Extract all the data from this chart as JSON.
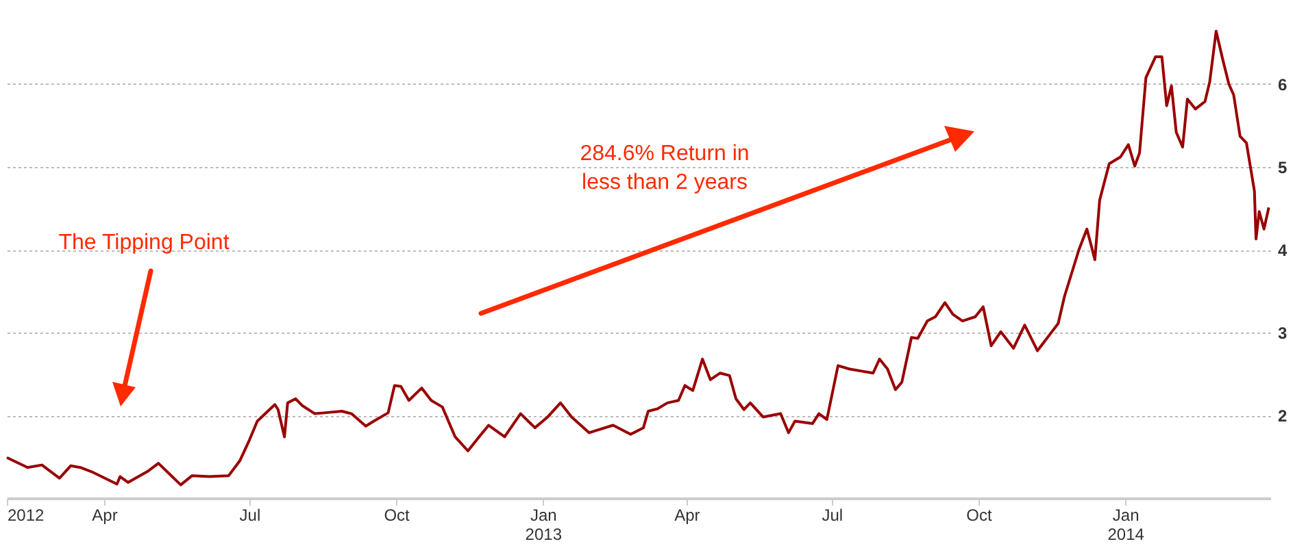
{
  "chart_data": {
    "type": "line",
    "x": [
      "2012-01-31",
      "2012-02-13",
      "2012-02-22",
      "2012-03-04",
      "2012-03-11",
      "2012-03-17",
      "2012-03-24",
      "2012-04-09",
      "2012-04-11",
      "2012-04-16",
      "2012-04-28",
      "2012-05-05",
      "2012-05-19",
      "2012-05-26",
      "2012-06-06",
      "2012-06-18",
      "2012-06-25",
      "2012-07-01",
      "2012-07-06",
      "2012-07-17",
      "2012-07-19",
      "2012-07-23",
      "2012-07-25",
      "2012-07-30",
      "2012-08-03",
      "2012-08-11",
      "2012-08-17",
      "2012-08-28",
      "2012-09-03",
      "2012-09-12",
      "2012-09-17",
      "2012-09-26",
      "2012-09-30",
      "2012-10-04",
      "2012-10-09",
      "2012-10-17",
      "2012-10-23",
      "2012-10-30",
      "2012-11-07",
      "2012-11-15",
      "2012-11-22",
      "2012-11-28",
      "2012-12-08",
      "2012-12-18",
      "2012-12-27",
      "2013-01-04",
      "2013-01-12",
      "2013-01-19",
      "2013-01-30",
      "2013-02-14",
      "2013-02-25",
      "2013-03-05",
      "2013-03-08",
      "2013-03-14",
      "2013-03-20",
      "2013-03-27",
      "2013-03-31",
      "2013-04-05",
      "2013-04-11",
      "2013-04-16",
      "2013-04-22",
      "2013-04-28",
      "2013-05-02",
      "2013-05-07",
      "2013-05-11",
      "2013-05-19",
      "2013-05-30",
      "2013-06-04",
      "2013-06-08",
      "2013-06-19",
      "2013-06-23",
      "2013-06-28",
      "2013-07-05",
      "2013-07-12",
      "2013-07-21",
      "2013-07-27",
      "2013-07-31",
      "2013-08-05",
      "2013-08-10",
      "2013-08-14",
      "2013-08-20",
      "2013-08-24",
      "2013-08-30",
      "2013-09-04",
      "2013-09-10",
      "2013-09-15",
      "2013-09-21",
      "2013-09-29",
      "2013-10-04",
      "2013-10-09",
      "2013-10-15",
      "2013-10-23",
      "2013-10-30",
      "2013-11-07",
      "2013-11-20",
      "2013-11-24",
      "2013-12-03",
      "2013-12-08",
      "2013-12-13",
      "2013-12-16",
      "2013-12-22",
      "2013-12-29",
      "2014-01-03",
      "2014-01-07",
      "2014-01-10",
      "2014-01-14",
      "2014-01-20",
      "2014-01-24",
      "2014-01-27",
      "2014-01-30",
      "2014-02-02",
      "2014-02-06",
      "2014-02-09",
      "2014-02-14",
      "2014-02-20",
      "2014-02-23",
      "2014-02-27",
      "2014-03-03",
      "2014-03-07",
      "2014-03-10",
      "2014-03-14",
      "2014-03-18",
      "2014-03-23",
      "2014-03-24",
      "2014-03-26",
      "2014-03-29",
      "2014-04-01"
    ],
    "series": [
      {
        "color": "#990000",
        "values": [
          1.49,
          1.37,
          1.4,
          1.24,
          1.39,
          1.37,
          1.32,
          1.17,
          1.26,
          1.19,
          1.32,
          1.42,
          1.16,
          1.27,
          1.26,
          1.27,
          1.45,
          1.7,
          1.93,
          2.13,
          2.07,
          1.74,
          2.15,
          2.2,
          2.12,
          2.02,
          2.03,
          2.05,
          2.02,
          1.87,
          1.93,
          2.03,
          2.36,
          2.35,
          2.18,
          2.33,
          2.18,
          2.1,
          1.74,
          1.57,
          1.74,
          1.88,
          1.74,
          2.02,
          1.85,
          1.98,
          2.15,
          1.98,
          1.79,
          1.88,
          1.77,
          1.85,
          2.05,
          2.08,
          2.15,
          2.18,
          2.36,
          2.3,
          2.68,
          2.43,
          2.51,
          2.48,
          2.2,
          2.07,
          2.15,
          1.98,
          2.02,
          1.79,
          1.93,
          1.9,
          2.02,
          1.95,
          2.6,
          2.56,
          2.53,
          2.51,
          2.68,
          2.56,
          2.31,
          2.4,
          2.94,
          2.93,
          3.14,
          3.19,
          3.36,
          3.22,
          3.14,
          3.19,
          3.31,
          2.84,
          3.01,
          2.81,
          3.09,
          2.78,
          3.11,
          3.44,
          4.0,
          4.25,
          3.88,
          4.6,
          5.04,
          5.12,
          5.27,
          5.01,
          5.17,
          6.08,
          6.33,
          6.33,
          5.74,
          5.98,
          5.42,
          5.24,
          5.82,
          5.7,
          5.79,
          6.03,
          6.64,
          6.31,
          6.0,
          5.87,
          5.37,
          5.29,
          4.71,
          4.13,
          4.46,
          4.25,
          4.51
        ]
      }
    ],
    "xlim": [
      "2012-01-31",
      "2014-04-02"
    ],
    "xticks": [
      {
        "value": "2012-01-31",
        "label": "2012"
      },
      {
        "value": "2012-04-01",
        "label": "Apr"
      },
      {
        "value": "2012-07-01",
        "label": "Jul"
      },
      {
        "value": "2012-10-01",
        "label": "Oct"
      },
      {
        "value": "2013-01-01",
        "label": "Jan 2013"
      },
      {
        "value": "2013-04-01",
        "label": "Apr"
      },
      {
        "value": "2013-07-01",
        "label": "Jul"
      },
      {
        "value": "2013-10-01",
        "label": "Oct"
      },
      {
        "value": "2014-01-01",
        "label": "Jan 2014"
      }
    ],
    "ylim": [
      1,
      7
    ],
    "yticks": [
      2,
      3,
      4,
      5,
      6
    ],
    "grid": "y",
    "annotations": [
      "The Tipping Point",
      "284.6% Return in less than 2 years"
    ]
  }
}
